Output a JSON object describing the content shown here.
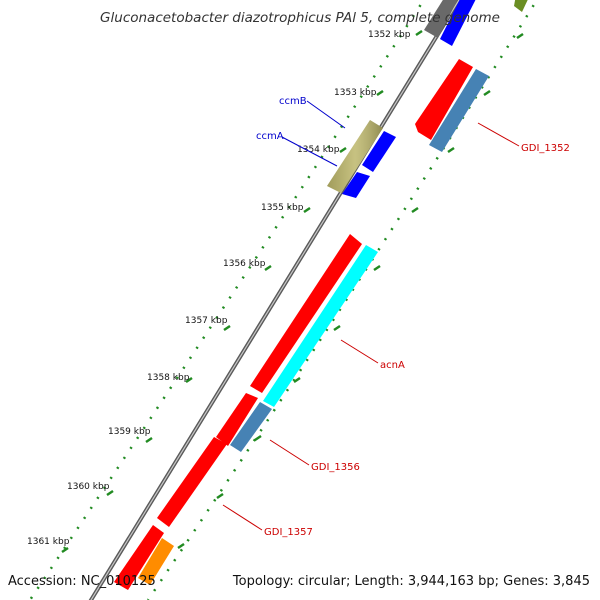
{
  "title": "Gluconacetobacter diazotrophicus PAl 5, complete genome",
  "footer": {
    "accession": "Accession: NC_010125",
    "summary": "Topology: circular; Length: 3,944,163 bp; Genes: 3,845"
  },
  "ticks": [
    "1352 kbp",
    "1353 kbp",
    "1354 kbp",
    "1355 kbp",
    "1356 kbp",
    "1357 kbp",
    "1358 kbp",
    "1359 kbp",
    "1360 kbp",
    "1361 kbp"
  ],
  "gene_labels": [
    {
      "text": "ccmB",
      "color": "#0000cc"
    },
    {
      "text": "ccmA",
      "color": "#0000cc"
    },
    {
      "text": "GDI_1352",
      "color": "#cc0000"
    },
    {
      "text": "acnA",
      "color": "#cc0000"
    },
    {
      "text": "GDI_1356",
      "color": "#cc0000"
    },
    {
      "text": "GDI_1357",
      "color": "#cc0000"
    }
  ],
  "colors": {
    "backbone": "#8a8a8a",
    "cds_red": "#ff0000",
    "cds_blue": "#0000ff",
    "blast_steel": "#4682b4",
    "blast_cyan": "#00ffff",
    "blast_khaki": "#bdb76b",
    "orange": "#ff8c00",
    "olive": "#6b8e23",
    "tick_green": "#228b22"
  }
}
